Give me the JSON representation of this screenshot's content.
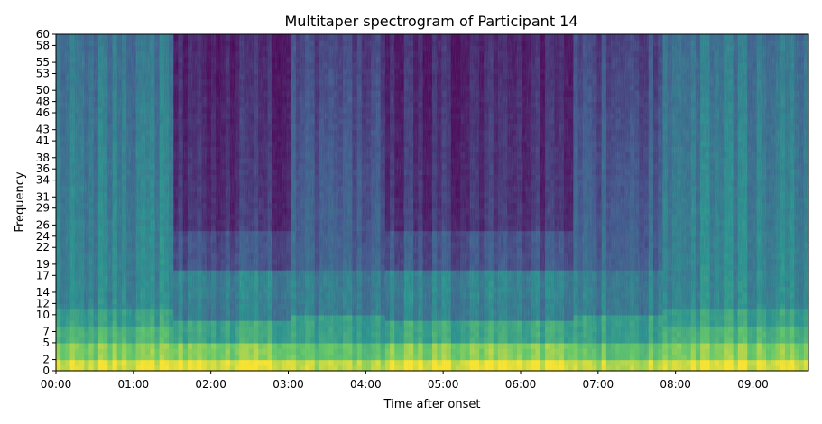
{
  "chart_data": {
    "type": "heatmap",
    "title": "Multitaper spectrogram of Participant 14",
    "xlabel": "Time after onset",
    "ylabel": "Frequency",
    "colormap": "viridis",
    "x_ticks": [
      "00:00",
      "01:00",
      "02:00",
      "03:00",
      "04:00",
      "05:00",
      "06:00",
      "07:00",
      "08:00",
      "09:00"
    ],
    "x_range_seconds": [
      0,
      583
    ],
    "y_ticks": [
      0,
      2,
      5,
      7,
      10,
      12,
      14,
      17,
      19,
      22,
      24,
      26,
      29,
      31,
      34,
      36,
      38,
      41,
      43,
      46,
      48,
      50,
      53,
      55,
      58,
      60
    ],
    "ylim": [
      0,
      60
    ],
    "segments": [
      {
        "start": "00:00",
        "end": "01:32",
        "state": "awake"
      },
      {
        "start": "01:32",
        "end": "03:02",
        "state": "low-power"
      },
      {
        "start": "03:02",
        "end": "04:15",
        "state": "mixed"
      },
      {
        "start": "04:15",
        "end": "05:40",
        "state": "low-power"
      },
      {
        "start": "05:40",
        "end": "06:40",
        "state": "low-power"
      },
      {
        "start": "06:40",
        "end": "07:50",
        "state": "mixed"
      },
      {
        "start": "07:50",
        "end": "09:43",
        "state": "awake"
      }
    ]
  }
}
